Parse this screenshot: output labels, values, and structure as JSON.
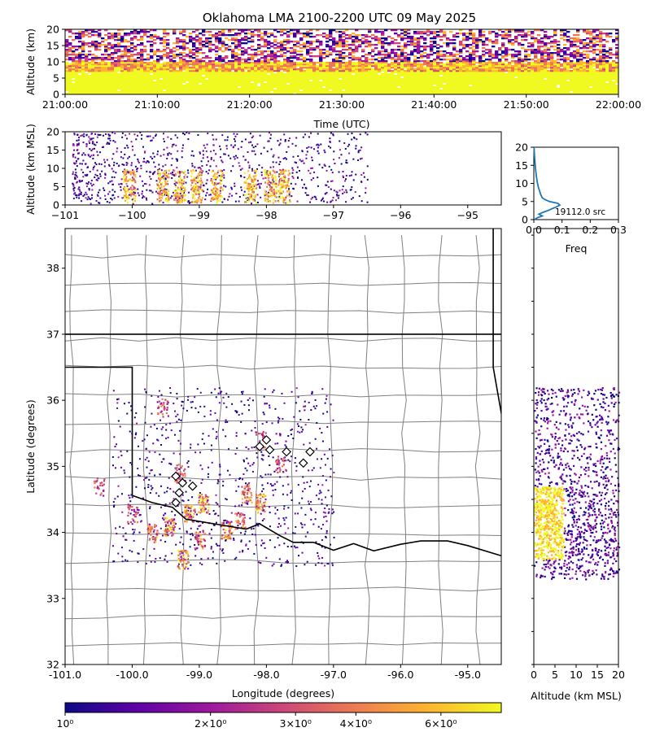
{
  "title": "Oklahoma LMA 2100-2200 UTC 09 May 2025",
  "chart_data": [
    {
      "panel": "time-altitude",
      "type": "heatmap",
      "xlabel": "Time (UTC)",
      "ylabel": "Altitude (km)",
      "x_ticks": [
        "21:00:00",
        "21:10:00",
        "21:20:00",
        "21:30:00",
        "21:40:00",
        "21:50:00",
        "22:00:00"
      ],
      "y_ticks": [
        0,
        5,
        10,
        15,
        20
      ],
      "xlim": [
        "21:00:00",
        "22:00:00"
      ],
      "ylim": [
        0,
        20
      ],
      "note_density": "dense sources 0-10 km throughout the hour, sparser scattered sources 10-20 km"
    },
    {
      "panel": "longitude-altitude",
      "type": "heatmap",
      "xlabel": "",
      "ylabel": "Altitude (km MSL)",
      "x_ticks": [
        -101,
        -100,
        -99,
        -98,
        -97,
        -96,
        -95
      ],
      "y_ticks": [
        0,
        5,
        10,
        15,
        20
      ],
      "xlim": [
        -101.0,
        -94.5
      ],
      "ylim": [
        0,
        20
      ],
      "cores_lon": [
        -100.05,
        -99.55,
        -99.3,
        -99.05,
        -98.75,
        -98.25,
        -97.95,
        -97.75
      ]
    },
    {
      "panel": "altitude-histogram",
      "type": "line",
      "xlabel": "Freq",
      "ylabel": "",
      "x_ticks": [
        "0.0",
        "0.1",
        "0.2",
        "0.3"
      ],
      "y_ticks": [
        0,
        5,
        10,
        15,
        20
      ],
      "xlim": [
        0,
        0.3
      ],
      "ylim": [
        0,
        20
      ],
      "annotation": "19112.0 src",
      "series": [
        {
          "color": "#1f77b4",
          "altitude_km": [
            0,
            0.5,
            1,
            1.5,
            2,
            2.5,
            3,
            3.5,
            4,
            4.5,
            5,
            5.5,
            6,
            7,
            8,
            9,
            10,
            12,
            14,
            16,
            18,
            20
          ],
          "freq": [
            0.002,
            0.012,
            0.03,
            0.018,
            0.032,
            0.05,
            0.065,
            0.08,
            0.092,
            0.085,
            0.055,
            0.04,
            0.03,
            0.024,
            0.02,
            0.016,
            0.013,
            0.009,
            0.006,
            0.004,
            0.002,
            0.001
          ]
        }
      ]
    },
    {
      "panel": "plan-view",
      "type": "scatter",
      "xlabel": "Longitude (degrees)",
      "ylabel": "Latitude (degrees)",
      "x_ticks": [
        "-101.0",
        "-100.0",
        "-99.0",
        "-98.0",
        "-97.0",
        "-96.0",
        "-95.0"
      ],
      "y_ticks": [
        32,
        33,
        34,
        35,
        36,
        37,
        38
      ],
      "xlim": [
        -101.0,
        -94.5
      ],
      "ylim": [
        32.0,
        38.6
      ],
      "stations": [
        {
          "lon": -99.35,
          "lat": 34.85
        },
        {
          "lon": -99.25,
          "lat": 34.75
        },
        {
          "lon": -99.1,
          "lat": 34.7
        },
        {
          "lon": -99.3,
          "lat": 34.6
        },
        {
          "lon": -99.35,
          "lat": 34.45
        },
        {
          "lon": -98.1,
          "lat": 35.3
        },
        {
          "lon": -97.95,
          "lat": 35.25
        },
        {
          "lon": -97.7,
          "lat": 35.22
        },
        {
          "lon": -97.35,
          "lat": 35.22
        },
        {
          "lon": -97.45,
          "lat": 35.05
        },
        {
          "lon": -98.0,
          "lat": 35.4
        }
      ],
      "source_clusters": [
        {
          "lon": -98.95,
          "lat": 34.45,
          "intensity": 1.0
        },
        {
          "lon": -99.15,
          "lat": 34.3,
          "intensity": 0.9
        },
        {
          "lon": -99.45,
          "lat": 34.1,
          "intensity": 0.95
        },
        {
          "lon": -99.7,
          "lat": 34.0,
          "intensity": 0.8
        },
        {
          "lon": -98.6,
          "lat": 34.05,
          "intensity": 0.85
        },
        {
          "lon": -98.1,
          "lat": 34.45,
          "intensity": 0.95
        },
        {
          "lon": -98.3,
          "lat": 34.6,
          "intensity": 0.7
        },
        {
          "lon": -99.0,
          "lat": 33.9,
          "intensity": 0.7
        },
        {
          "lon": -99.25,
          "lat": 33.6,
          "intensity": 0.9
        },
        {
          "lon": -99.3,
          "lat": 34.9,
          "intensity": 0.5
        },
        {
          "lon": -97.8,
          "lat": 35.05,
          "intensity": 0.5
        },
        {
          "lon": -98.1,
          "lat": 35.4,
          "intensity": 0.45
        },
        {
          "lon": -100.0,
          "lat": 34.3,
          "intensity": 0.5
        },
        {
          "lon": -100.5,
          "lat": 34.7,
          "intensity": 0.45
        },
        {
          "lon": -99.55,
          "lat": 35.9,
          "intensity": 0.5
        },
        {
          "lon": -98.4,
          "lat": 34.2,
          "intensity": 0.6
        }
      ]
    },
    {
      "panel": "altitude-latitude",
      "type": "heatmap",
      "xlabel": "Altitude (km MSL)",
      "ylabel": "",
      "x_ticks": [
        0,
        5,
        10,
        15,
        20
      ],
      "ylim": [
        32.0,
        38.6
      ],
      "xlim": [
        0,
        20
      ],
      "note_density": "dense 0-7 km between 33.6 and 34.7 deg latitude; scattered sources 34.7-36.1 deg"
    },
    {
      "panel": "colorbar",
      "type": "heatmap",
      "scale": "log",
      "colormap": "plasma",
      "range": [
        1,
        8
      ],
      "tick_labels": [
        {
          "value": 1,
          "label": "10⁰"
        },
        {
          "value": 2,
          "label": "2×10⁰"
        },
        {
          "value": 3,
          "label": "3×10⁰"
        },
        {
          "value": 4,
          "label": "4×10⁰"
        },
        {
          "value": 6,
          "label": "6×10⁰"
        }
      ]
    }
  ],
  "colors": {
    "plasma": [
      "#0d0887",
      "#5c01a6",
      "#9c179e",
      "#cc4778",
      "#ed7953",
      "#fdb42f",
      "#f0f921"
    ],
    "histogram_line": "#1f77b4",
    "county_border": "#808080",
    "state_border": "#000000"
  }
}
